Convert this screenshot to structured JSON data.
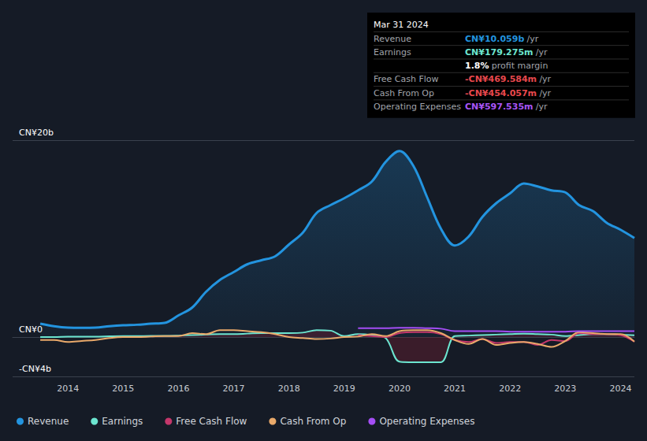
{
  "chart_data": {
    "type": "line",
    "x": [
      2013.5,
      2013.75,
      2014,
      2014.25,
      2014.5,
      2014.75,
      2015,
      2015.25,
      2015.5,
      2015.75,
      2016,
      2016.25,
      2016.5,
      2016.75,
      2017,
      2017.25,
      2017.5,
      2017.75,
      2018,
      2018.25,
      2018.5,
      2018.75,
      2019,
      2019.25,
      2019.5,
      2019.75,
      2020,
      2020.25,
      2020.5,
      2020.75,
      2021,
      2021.25,
      2021.5,
      2021.75,
      2022,
      2022.25,
      2022.5,
      2022.75,
      2023,
      2023.25,
      2023.5,
      2023.75,
      2024,
      2024.25
    ],
    "series": [
      {
        "name": "Revenue",
        "color": "#2394df",
        "values": [
          1.36,
          1.1,
          0.96,
          0.94,
          0.96,
          1.1,
          1.2,
          1.25,
          1.36,
          1.44,
          2.2,
          3.0,
          4.6,
          5.8,
          6.6,
          7.4,
          7.8,
          8.2,
          9.4,
          10.6,
          12.6,
          13.4,
          14.1,
          14.9,
          15.8,
          17.8,
          18.9,
          17.4,
          14.2,
          11.0,
          9.3,
          10.2,
          12.2,
          13.6,
          14.6,
          15.6,
          15.3,
          14.9,
          14.7,
          13.4,
          12.8,
          11.6,
          10.9,
          10.059
        ]
      },
      {
        "name": "Earnings",
        "color": "#6ce5d0",
        "values": [
          0.0,
          0.0,
          0.05,
          0.05,
          0.05,
          0.08,
          0.1,
          0.1,
          0.12,
          0.12,
          0.15,
          0.2,
          0.25,
          0.3,
          0.3,
          0.35,
          0.4,
          0.4,
          0.4,
          0.45,
          0.7,
          0.65,
          0.1,
          0.3,
          0.2,
          -0.1,
          -2.5,
          -2.55,
          -2.55,
          -2.55,
          0.1,
          0.15,
          0.2,
          0.25,
          0.3,
          0.35,
          0.3,
          0.25,
          0.1,
          0.2,
          0.3,
          0.3,
          0.25,
          0.179
        ]
      },
      {
        "name": "Free Cash Flow",
        "color": "#c4376b",
        "values": [
          null,
          null,
          null,
          null,
          null,
          null,
          null,
          null,
          null,
          null,
          null,
          null,
          null,
          null,
          null,
          null,
          null,
          null,
          null,
          null,
          null,
          null,
          null,
          0.2,
          0.1,
          0.0,
          0.4,
          0.5,
          0.5,
          0.3,
          -0.3,
          -0.5,
          -0.2,
          -0.6,
          -0.5,
          -0.5,
          -0.8,
          -0.3,
          -0.4,
          0.4,
          0.3,
          0.3,
          0.2,
          -0.47
        ]
      },
      {
        "name": "Cash From Op",
        "color": "#e9a96a",
        "values": [
          -0.3,
          -0.3,
          -0.5,
          -0.4,
          -0.3,
          -0.1,
          0.0,
          0.0,
          0.05,
          0.1,
          0.1,
          0.4,
          0.3,
          0.7,
          0.7,
          0.6,
          0.5,
          0.3,
          0.0,
          -0.1,
          -0.2,
          -0.15,
          0.0,
          0.05,
          0.3,
          0.1,
          0.6,
          0.7,
          0.7,
          0.4,
          -0.3,
          -0.7,
          -0.2,
          -0.8,
          -0.6,
          -0.5,
          -0.7,
          -1.0,
          -0.4,
          0.5,
          0.4,
          0.3,
          0.3,
          -0.454
        ]
      },
      {
        "name": "Operating Expenses",
        "color": "#a44ef5",
        "values": [
          null,
          null,
          null,
          null,
          null,
          null,
          null,
          null,
          null,
          null,
          null,
          null,
          null,
          null,
          null,
          null,
          null,
          null,
          null,
          null,
          null,
          null,
          null,
          0.9,
          0.9,
          0.9,
          0.95,
          0.95,
          0.9,
          0.85,
          0.6,
          0.6,
          0.6,
          0.6,
          0.55,
          0.55,
          0.55,
          0.55,
          0.55,
          0.6,
          0.6,
          0.6,
          0.6,
          0.598
        ]
      }
    ],
    "xlim": [
      2013.0,
      2024.25
    ],
    "xticks": [
      2014,
      2015,
      2016,
      2017,
      2018,
      2019,
      2020,
      2021,
      2022,
      2023,
      2024
    ],
    "ylim": [
      -4,
      20
    ],
    "yticks": [
      {
        "value": -4,
        "label": "-CN¥4b"
      },
      {
        "value": 0,
        "label": "CN¥0"
      },
      {
        "value": 20,
        "label": "CN¥20b"
      }
    ],
    "grid": true,
    "legend": "bottom",
    "info_box": {
      "title": "Mar 31 2024",
      "rows": [
        {
          "label": "Revenue",
          "value": "CN¥10.059b",
          "unit": "/yr",
          "color": "#2394df"
        },
        {
          "label": "Earnings",
          "value": "CN¥179.275m",
          "unit": "/yr",
          "color": "#6ce5d0"
        },
        {
          "value": "1.8%",
          "unit": "profit margin",
          "color": "#ffffff"
        },
        {
          "label": "Free Cash Flow",
          "value": "-CN¥469.584m",
          "unit": "/yr",
          "color": "#e8484d"
        },
        {
          "label": "Cash From Op",
          "value": "-CN¥454.057m",
          "unit": "/yr",
          "color": "#e8484d"
        },
        {
          "label": "Operating Expenses",
          "value": "CN¥597.535m",
          "unit": "/yr",
          "color": "#a855f7"
        }
      ]
    }
  }
}
